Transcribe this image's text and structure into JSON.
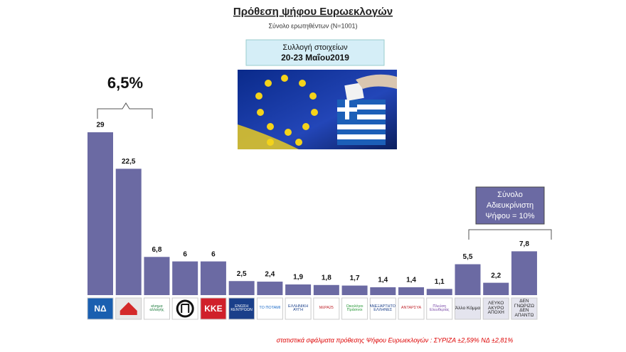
{
  "chart_data": {
    "type": "bar",
    "title": "Πρόθεση ψήφου Ευρωεκλογών",
    "subtitle": "Σύνολο ερωτηθέντων (N=1001)",
    "info_box": {
      "line1": "Συλλογή στοιχείων",
      "line2": "20-23 Μαΐου2019"
    },
    "brace_annotation": "6,5%",
    "undecided_box": {
      "line1": "Σύνολο",
      "line2": "Αδιευκρίνιστη",
      "line3": "Ψήφου = 10%"
    },
    "footnote": "στατιστικά σφάλματα πρόθεσης Ψήφου Ευρωεκλογών  : ΣΥΡΙΖΑ ±2,59% ΝΔ ±2,81%",
    "categories": [
      "ΝΔ",
      null,
      "κίνημα αλλαγής",
      null,
      "ΚΚΕ",
      "ΕΝΩΣΗ ΚΕΝΤΡΩΩΝ",
      "ΤΟ ΠΟΤΑΜΙ",
      "ΕΛΛΗΝΙΚΗ ΑΥΓΗ",
      "ΜέΡΑ25",
      "Οικολόγοι Πράσινοι",
      "ΑΝΕΞΑΡΤΗΤΟΙ ΕΛΛΗΝΕΣ",
      "ΑΝΤΑΡΣΥΑ",
      "Πλεύση Ελευθερίας",
      "Άλλο Κόμμα",
      "ΛΕΥΚΟ ΑΚΥΡΟ ΑΠΟΧΗ",
      "ΔΕΝ ΓΝΩΡΙΖΩ ΔΕΝ ΑΠΑΝΤΩ"
    ],
    "values": [
      29,
      22.5,
      6.8,
      6,
      6,
      2.5,
      2.4,
      1.9,
      1.8,
      1.7,
      1.4,
      1.4,
      1.1,
      5.5,
      2.2,
      7.8
    ],
    "value_labels": [
      "29",
      "22,5",
      "6,8",
      "6",
      "6",
      "2,5",
      "2,4",
      "1,9",
      "1,8",
      "1,7",
      "1,4",
      "1,4",
      "1,1",
      "5,5",
      "2,2",
      "7,8"
    ],
    "color": "#6b6aa3"
  }
}
